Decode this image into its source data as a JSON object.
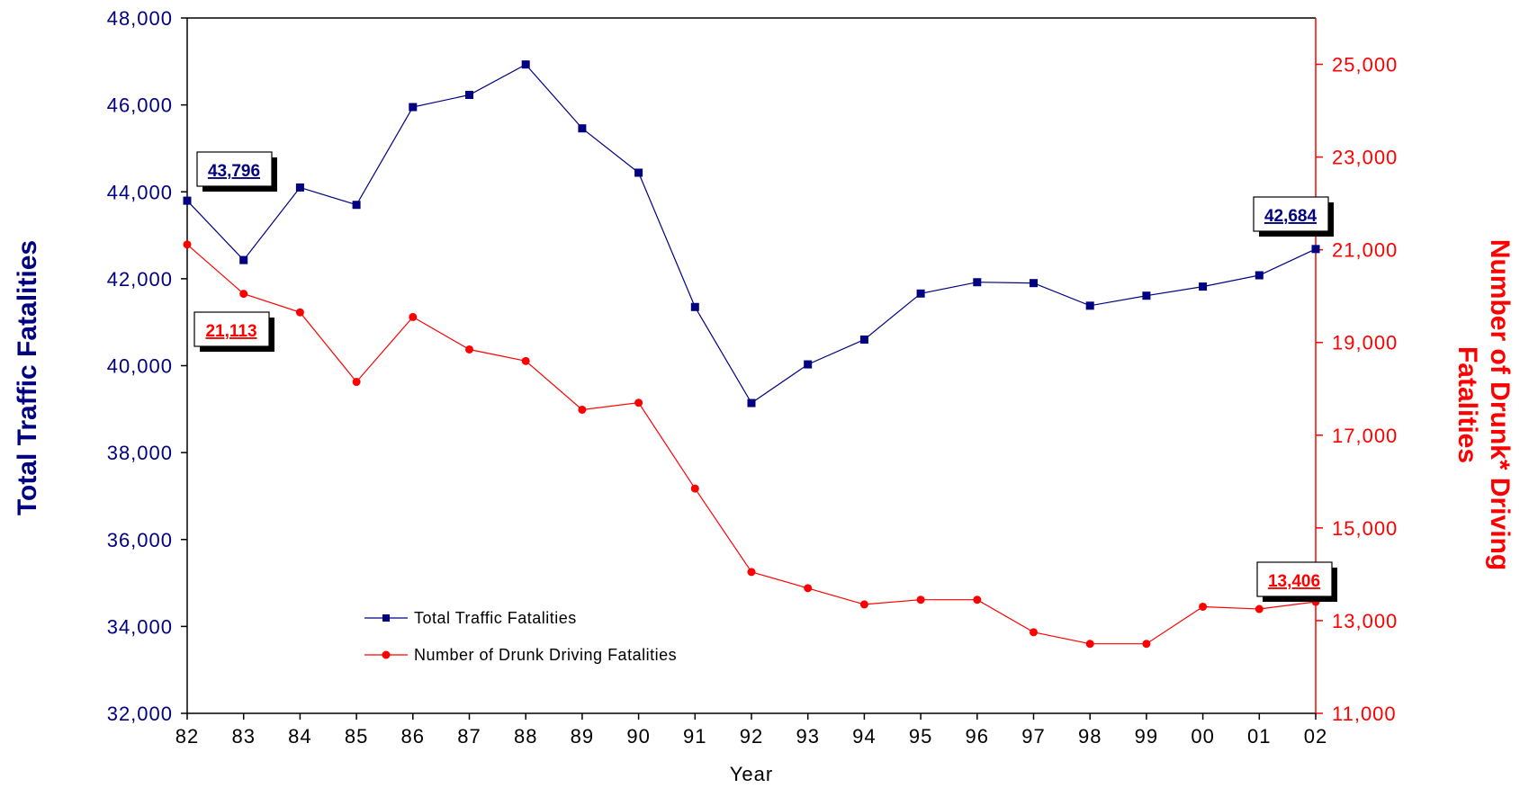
{
  "colors": {
    "total": "#000080",
    "drunk": "#ff0000",
    "axis": "#000000"
  },
  "chart_data": {
    "type": "line",
    "title": "",
    "xlabel": "Year",
    "ylabel_left": "Total Traffic Fatalities",
    "ylabel_right_lines": [
      "Number of Drunk* Driving",
      "Fatalities"
    ],
    "x": [
      "82",
      "83",
      "84",
      "85",
      "86",
      "87",
      "88",
      "89",
      "90",
      "91",
      "92",
      "93",
      "94",
      "95",
      "96",
      "97",
      "98",
      "99",
      "00",
      "01",
      "02"
    ],
    "left_axis": {
      "min": 32000,
      "max": 48000,
      "ticks": [
        32000,
        34000,
        36000,
        38000,
        40000,
        42000,
        44000,
        46000,
        48000
      ],
      "tick_labels": [
        "32,000",
        "34,000",
        "36,000",
        "38,000",
        "40,000",
        "42,000",
        "44,000",
        "46,000",
        "48,000"
      ]
    },
    "right_axis": {
      "min": 11000,
      "max": 26000,
      "ticks": [
        11000,
        13000,
        15000,
        17000,
        19000,
        21000,
        23000,
        25000
      ],
      "tick_labels": [
        "11,000",
        "13,000",
        "15,000",
        "17,000",
        "19,000",
        "21,000",
        "23,000",
        "25,000"
      ]
    },
    "series": [
      {
        "name": "Total Traffic Fatalities",
        "axis": "left",
        "marker": "square",
        "values": [
          43796,
          42430,
          44100,
          43700,
          45950,
          46230,
          46930,
          45460,
          44440,
          41350,
          39140,
          40030,
          40600,
          41660,
          41920,
          41900,
          41380,
          41610,
          41820,
          42080,
          42684
        ]
      },
      {
        "name": "Number of Drunk Driving Fatalities",
        "axis": "right",
        "marker": "circle",
        "values": [
          21113,
          20050,
          19650,
          18150,
          19550,
          18850,
          18600,
          17550,
          17700,
          15850,
          14050,
          13700,
          13350,
          13450,
          13450,
          12750,
          12500,
          12500,
          13300,
          13250,
          13406
        ]
      }
    ],
    "annotations": [
      {
        "text": "43,796",
        "series": 0
      },
      {
        "text": "42,684",
        "series": 0
      },
      {
        "text": "21,113",
        "series": 1
      },
      {
        "text": "13,406",
        "series": 1
      }
    ],
    "legend": {
      "position": "bottom-left-inside",
      "entries": [
        "Total Traffic Fatalities",
        "Number of Drunk Driving Fatalities"
      ]
    },
    "grid": false
  }
}
